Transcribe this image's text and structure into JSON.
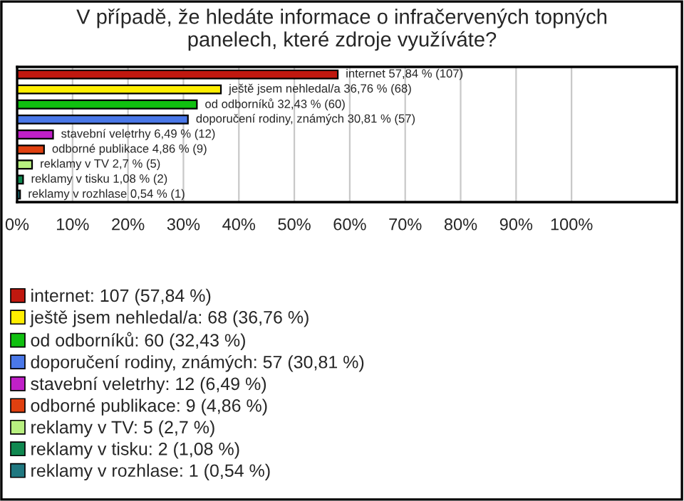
{
  "chart_data": {
    "type": "bar",
    "orientation": "horizontal",
    "title": "V případě, že hledáte informace o infračervených topných panelech, které zdroje využíváte?",
    "categories": [
      null,
      null,
      null,
      null,
      null,
      null,
      null,
      null,
      null
    ],
    "series": [
      {
        "name": "internet: 107 (57,84 %)",
        "color": "#c0180f",
        "values": [
          57.84,
          null,
          null,
          null,
          null,
          null,
          null,
          null,
          null
        ],
        "value_labels": [
          "internet 57,84 % (107)",
          null,
          null,
          null,
          null,
          null,
          null,
          null,
          null
        ]
      },
      {
        "name": "ještě jsem nehledal/a: 68 (36,76 %)",
        "color": "#ffee00",
        "values": [
          null,
          36.76,
          null,
          null,
          null,
          null,
          null,
          null,
          null
        ],
        "value_labels": [
          null,
          "ještě jsem nehledal/a 36,76 % (68)",
          null,
          null,
          null,
          null,
          null,
          null,
          null
        ]
      },
      {
        "name": "od odborníků: 60 (32,43 %)",
        "color": "#10c010",
        "values": [
          null,
          null,
          32.43,
          null,
          null,
          null,
          null,
          null,
          null
        ],
        "value_labels": [
          null,
          null,
          "od odborníků 32,43 % (60)",
          null,
          null,
          null,
          null,
          null,
          null
        ]
      },
      {
        "name": "doporučení rodiny, známých: 57 (30,81 %)",
        "color": "#4a78e8",
        "values": [
          null,
          null,
          null,
          30.81,
          null,
          null,
          null,
          null,
          null
        ],
        "value_labels": [
          null,
          null,
          null,
          "doporučení rodiny, známých 30,81 % (57)",
          null,
          null,
          null,
          null,
          null
        ]
      },
      {
        "name": "stavební veletrhy: 12 (6,49 %)",
        "color": "#c020c8",
        "values": [
          null,
          null,
          null,
          null,
          6.49,
          null,
          null,
          null,
          null
        ],
        "value_labels": [
          null,
          null,
          null,
          null,
          "stavební veletrhy 6,49 % (12)",
          null,
          null,
          null,
          null
        ]
      },
      {
        "name": "odborné publikace: 9 (4,86 %)",
        "color": "#e04010",
        "values": [
          null,
          null,
          null,
          null,
          null,
          4.86,
          null,
          null,
          null
        ],
        "value_labels": [
          null,
          null,
          null,
          null,
          null,
          "odborné publikace 4,86 % (9)",
          null,
          null,
          null
        ]
      },
      {
        "name": "reklamy v TV: 5 (2,7 %)",
        "color": "#b8f080",
        "values": [
          null,
          null,
          null,
          null,
          null,
          null,
          2.7,
          null,
          null
        ],
        "value_labels": [
          null,
          null,
          null,
          null,
          null,
          null,
          "reklamy v TV 2,7 % (5)",
          null,
          null
        ]
      },
      {
        "name": "reklamy v tisku: 2 (1,08 %)",
        "color": "#108850",
        "values": [
          null,
          null,
          null,
          null,
          null,
          null,
          null,
          1.08,
          null
        ],
        "value_labels": [
          null,
          null,
          null,
          null,
          null,
          null,
          null,
          "reklamy v tisku 1,08 % (2)",
          null
        ]
      },
      {
        "name": "reklamy v rozhlase: 1 (0,54 %)",
        "color": "#207880",
        "values": [
          null,
          null,
          null,
          null,
          null,
          null,
          null,
          null,
          0.54
        ],
        "value_labels": [
          null,
          null,
          null,
          null,
          null,
          null,
          null,
          null,
          "reklamy v rozhlase 0,54 % (1)"
        ]
      }
    ],
    "xlim": [
      0,
      119
    ],
    "xticks": [
      {
        "value": 0,
        "label": "0%"
      },
      {
        "value": 10,
        "label": "10%"
      },
      {
        "value": 20,
        "label": "20%"
      },
      {
        "value": 30,
        "label": "30%"
      },
      {
        "value": 40,
        "label": "40%"
      },
      {
        "value": 50,
        "label": "50%"
      },
      {
        "value": 60,
        "label": "60%"
      },
      {
        "value": 70,
        "label": "70%"
      },
      {
        "value": 80,
        "label": "80%"
      },
      {
        "value": 90,
        "label": "90%"
      },
      {
        "value": 100,
        "label": "100%"
      }
    ],
    "grid": "x",
    "legend": "bottom"
  }
}
